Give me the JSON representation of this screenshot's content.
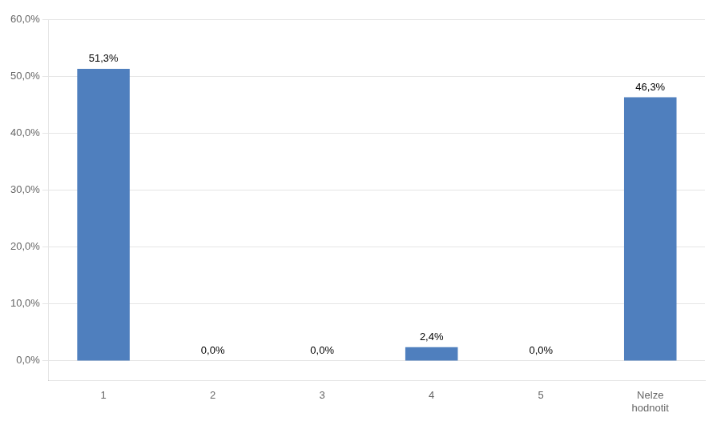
{
  "chart_data": {
    "type": "bar",
    "categories": [
      "1",
      "2",
      "3",
      "4",
      "5",
      "Nelze\nhodnotit"
    ],
    "values": [
      51.3,
      0.0,
      0.0,
      2.4,
      0.0,
      46.3
    ],
    "value_labels": [
      "51,3%",
      "0,0%",
      "0,0%",
      "2,4%",
      "0,0%",
      "46,3%"
    ],
    "data_labels": true,
    "color": "#4F7FBE",
    "ylim": [
      -3.5,
      60
    ],
    "yticks": [
      {
        "value": 0,
        "label": "0,0%"
      },
      {
        "value": 10,
        "label": "10,0%"
      },
      {
        "value": 20,
        "label": "20,0%"
      },
      {
        "value": 30,
        "label": "30,0%"
      },
      {
        "value": 40,
        "label": "40,0%"
      },
      {
        "value": 50,
        "label": "50,0%"
      },
      {
        "value": 60,
        "label": "60,0%"
      }
    ],
    "grid": true
  }
}
